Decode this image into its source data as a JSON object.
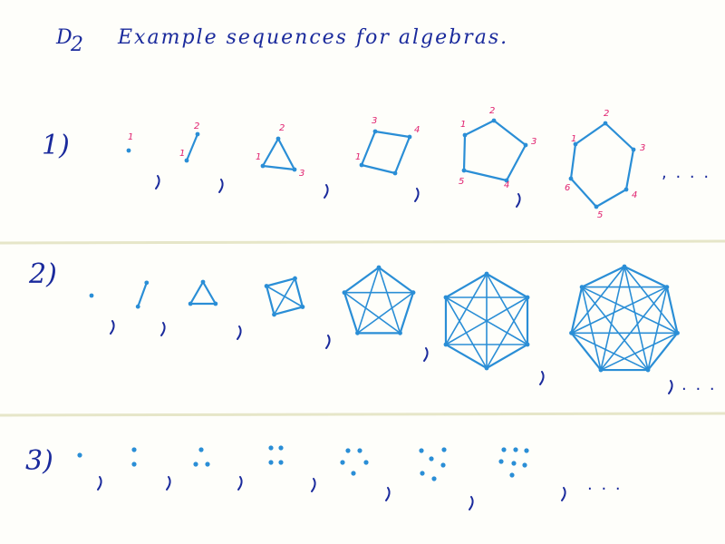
{
  "title": {
    "main": "D",
    "sub": "2",
    "text": "Example sequences for algebras."
  },
  "rows": [
    {
      "label": "1)",
      "ellipsis": ", . . ."
    },
    {
      "label": "2)",
      "ellipsis": ". . ."
    },
    {
      "label": "3)",
      "ellipsis": ". . ."
    }
  ],
  "row1": {
    "figures": [
      {
        "n": 1,
        "labels": [
          "1"
        ]
      },
      {
        "n": 2,
        "labels": [
          "1",
          "2"
        ]
      },
      {
        "n": 3,
        "labels": [
          "1",
          "2",
          "3"
        ]
      },
      {
        "n": 4,
        "labels": [
          "1",
          "3",
          "4"
        ]
      },
      {
        "n": 5,
        "labels": [
          "1",
          "2",
          "3",
          "4",
          "5"
        ]
      },
      {
        "n": 6,
        "labels": [
          "1",
          "2",
          "3",
          "4",
          "5",
          "6"
        ]
      }
    ]
  },
  "row2": {
    "figure_vertex_counts": [
      1,
      2,
      3,
      4,
      5,
      6,
      7
    ]
  },
  "row3": {
    "dot_counts": [
      1,
      2,
      3,
      4,
      5,
      6,
      7
    ]
  },
  "colors": {
    "ink": "#1a2a9c",
    "pen": "#2a8ed6",
    "label": "#e0206e"
  }
}
